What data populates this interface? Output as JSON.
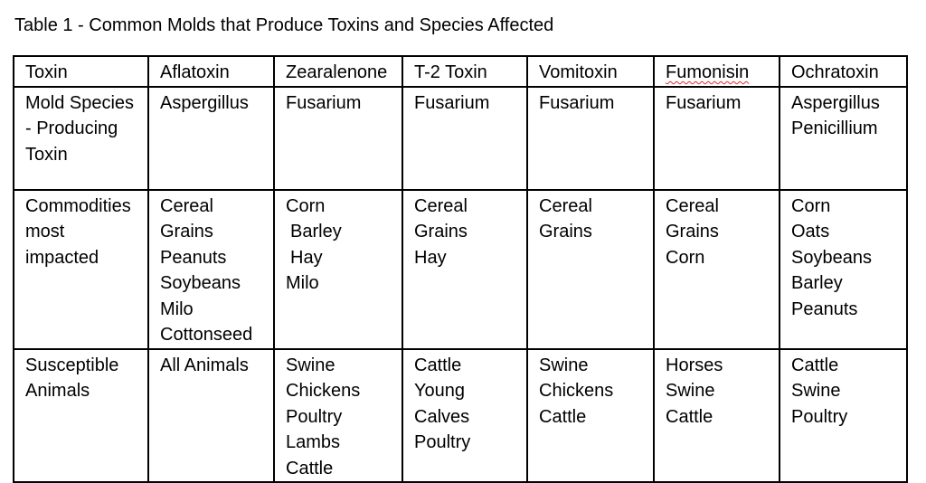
{
  "caption": "Table 1 - Common Molds that Produce Toxins and Species Affected",
  "table": {
    "header": [
      "Toxin",
      "Aflatoxin",
      "Zearalenone",
      "T-2 Toxin",
      "Vomitoxin",
      "Fumonisin",
      "Ochratoxin"
    ],
    "rows": [
      {
        "label": [
          "Mold Species",
          "- Producing",
          "Toxin"
        ],
        "cells": [
          [
            "Aspergillus"
          ],
          [
            "Fusarium"
          ],
          [
            "Fusarium"
          ],
          [
            "Fusarium"
          ],
          [
            "Fusarium"
          ],
          [
            "Aspergillus",
            "Penicillium"
          ]
        ]
      },
      {
        "label": [
          "Commodities",
          "most",
          "impacted"
        ],
        "cells": [
          [
            "Cereal",
            "Grains",
            "Peanuts",
            "Soybeans",
            "Milo",
            "Cottonseed"
          ],
          [
            "Corn",
            "Barley",
            "Hay",
            "Milo"
          ],
          [
            "Cereal",
            "Grains",
            "Hay"
          ],
          [
            "Cereal",
            "Grains"
          ],
          [
            "Cereal",
            "Grains",
            "Corn"
          ],
          [
            "Corn",
            "Oats",
            "Soybeans",
            "Barley",
            "Peanuts"
          ]
        ]
      },
      {
        "label": [
          "Susceptible",
          "Animals"
        ],
        "cells": [
          [
            "All Animals"
          ],
          [
            "Swine",
            "Chickens",
            "Poultry",
            "Lambs",
            "Cattle"
          ],
          [
            "Cattle",
            "Young",
            "Calves",
            "Poultry"
          ],
          [
            "Swine",
            "Chickens",
            "Cattle"
          ],
          [
            "Horses",
            "Swine",
            "Cattle"
          ],
          [
            "Cattle",
            "Swine",
            "Poultry"
          ]
        ]
      }
    ]
  }
}
